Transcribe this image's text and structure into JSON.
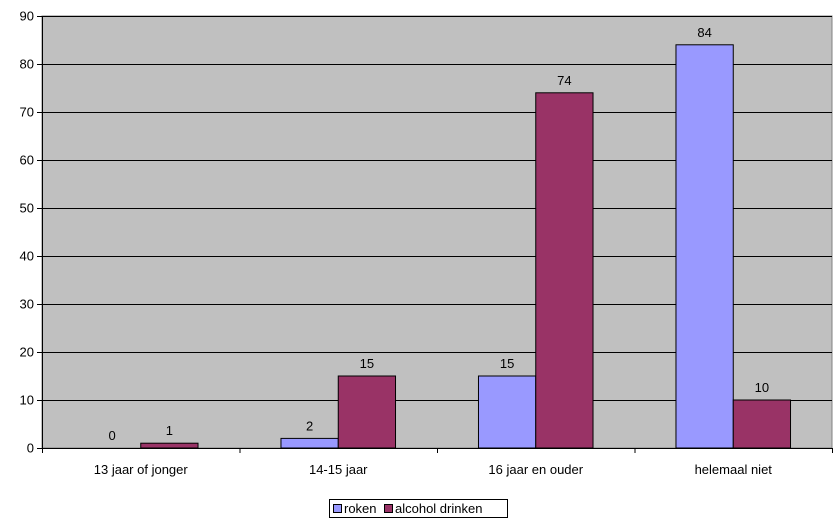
{
  "chart_data": {
    "type": "bar",
    "categories": [
      "13 jaar of jonger",
      "14-15 jaar",
      "16 jaar en ouder",
      "helemaal niet"
    ],
    "series": [
      {
        "name": "roken",
        "values": [
          0,
          2,
          15,
          84
        ],
        "color": "#9999ff"
      },
      {
        "name": "alcohol drinken",
        "values": [
          1,
          15,
          74,
          10
        ],
        "color": "#993366"
      }
    ],
    "ylim": [
      0,
      90
    ],
    "yticks": [
      0,
      10,
      20,
      30,
      40,
      50,
      60,
      70,
      80,
      90
    ],
    "grid": true,
    "legend_position": "bottom",
    "plot_background": "#c0c0c0"
  }
}
